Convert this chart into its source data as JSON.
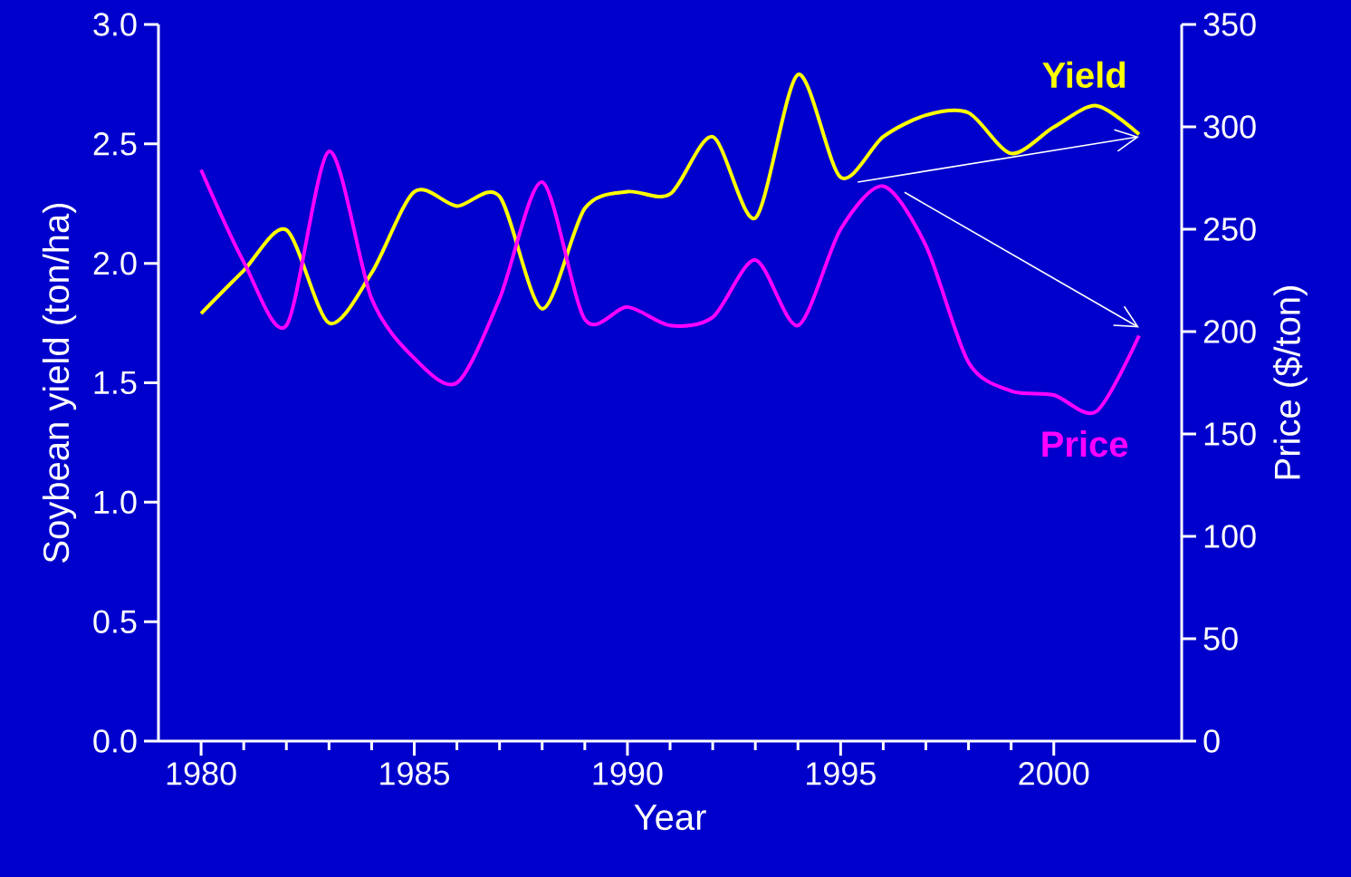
{
  "chart_data": {
    "type": "line",
    "xlabel": "Year",
    "ylabel": "Soybean yield (ton/ha)",
    "y2label": "Price ($/ton)",
    "x": [
      1980,
      1981,
      1982,
      1983,
      1984,
      1985,
      1986,
      1987,
      1988,
      1989,
      1990,
      1991,
      1992,
      1993,
      1994,
      1995,
      1996,
      1997,
      1998,
      1999,
      2000,
      2001,
      2002
    ],
    "series": [
      {
        "name": "Yield",
        "color": "#ffff00",
        "values": [
          1.79,
          1.97,
          2.14,
          1.75,
          1.96,
          2.3,
          2.24,
          2.28,
          1.81,
          2.23,
          2.3,
          2.29,
          2.53,
          2.19,
          2.79,
          2.36,
          2.53,
          2.62,
          2.63,
          2.46,
          2.57,
          2.66,
          2.54
        ]
      },
      {
        "name": "Price",
        "color": "#ff00ff",
        "axis": "y2",
        "values": [
          279,
          234,
          203,
          288,
          216,
          187,
          175,
          216,
          273,
          206,
          212,
          203,
          207,
          235,
          203,
          250,
          271,
          242,
          185,
          171,
          169,
          161,
          198
        ]
      }
    ],
    "xlim": [
      1979,
      2003
    ],
    "xticks": [
      1980,
      1985,
      1990,
      1995,
      2000
    ],
    "ylim": [
      0,
      3
    ],
    "yticks": [
      {
        "value": 0,
        "label": "0.0"
      },
      {
        "value": 0.5,
        "label": "0.5"
      },
      {
        "value": 1,
        "label": "1.0"
      },
      {
        "value": 1.5,
        "label": "1.5"
      },
      {
        "value": 2,
        "label": "2.0"
      },
      {
        "value": 2.5,
        "label": "2.5"
      },
      {
        "value": 3,
        "label": "3.0"
      }
    ],
    "y2lim": [
      0,
      350
    ],
    "y2ticks": [
      0,
      50,
      100,
      150,
      200,
      250,
      300,
      350
    ]
  }
}
